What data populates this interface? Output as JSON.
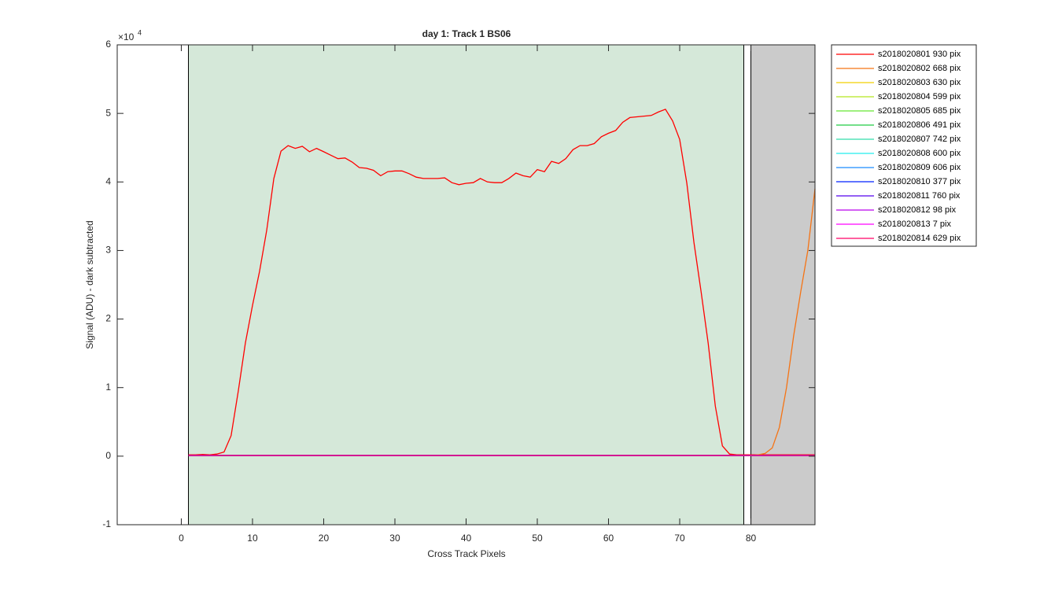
{
  "chart_data": {
    "type": "line",
    "title": "day 1: Track 1  BS06",
    "x_label": "Cross Track Pixels",
    "y_label": "Signal (ADU) - dark subtracted",
    "y_exponent_base": "×10",
    "y_exponent_power": "4",
    "xlim": [
      -9,
      89
    ],
    "ylim": [
      -10000,
      60000
    ],
    "xticks": [
      0,
      10,
      20,
      30,
      40,
      50,
      60,
      70,
      80
    ],
    "yticks": [
      {
        "value": -10000,
        "label": "-1"
      },
      {
        "value": 0,
        "label": "0"
      },
      {
        "value": 10000,
        "label": "1"
      },
      {
        "value": 20000,
        "label": "2"
      },
      {
        "value": 30000,
        "label": "3"
      },
      {
        "value": 40000,
        "label": "4"
      },
      {
        "value": 50000,
        "label": "5"
      },
      {
        "value": 60000,
        "label": "6"
      }
    ],
    "regions": [
      {
        "xmin": 1,
        "xmax": 79,
        "color": "#d5e8d9"
      },
      {
        "xmin": 80,
        "xmax": 89,
        "color": "#cbcbcb"
      }
    ],
    "series": [
      {
        "name": "s2018020801 930 pix",
        "color": "#ff0000",
        "x": [
          1,
          2,
          3,
          4,
          5,
          6,
          7,
          8,
          9,
          10,
          11,
          12,
          13,
          14,
          15,
          16,
          17,
          18,
          19,
          20,
          21,
          22,
          23,
          24,
          25,
          26,
          27,
          28,
          29,
          30,
          31,
          32,
          33,
          34,
          35,
          36,
          37,
          38,
          39,
          40,
          41,
          42,
          43,
          44,
          45,
          46,
          47,
          48,
          49,
          50,
          51,
          52,
          53,
          54,
          55,
          56,
          57,
          58,
          59,
          60,
          61,
          62,
          63,
          64,
          65,
          66,
          67,
          68,
          69,
          70,
          71,
          72,
          73,
          74,
          75,
          76,
          77,
          78,
          79,
          80,
          81,
          82,
          83,
          84,
          85,
          86,
          87,
          88,
          89
        ],
        "values": [
          200,
          200,
          250,
          200,
          300,
          600,
          3000,
          9500,
          16500,
          22000,
          27000,
          33000,
          40500,
          44500,
          45300,
          44900,
          45200,
          44400,
          44900,
          44400,
          43900,
          43400,
          43500,
          42900,
          42100,
          42000,
          41700,
          40900,
          41500,
          41600,
          41600,
          41200,
          40700,
          40500,
          40500,
          40500,
          40600,
          39900,
          39600,
          39800,
          39900,
          40500,
          40000,
          39900,
          39900,
          40500,
          41300,
          40900,
          40700,
          41800,
          41500,
          43000,
          42700,
          43400,
          44700,
          45300,
          45300,
          45600,
          46600,
          47100,
          47500,
          48700,
          49400,
          49500,
          49600,
          49700,
          50200,
          50600,
          48900,
          46200,
          39800,
          31200,
          24000,
          16500,
          7300,
          1500,
          300,
          200,
          200,
          200,
          200,
          200,
          200,
          200,
          200,
          200,
          200,
          200,
          200
        ]
      },
      {
        "name": "s2018020802 668 pix",
        "color": "#f57314",
        "x": [
          1,
          80,
          81,
          82,
          83,
          84,
          85,
          86,
          87,
          88,
          89
        ],
        "values": [
          100,
          100,
          200,
          400,
          1200,
          4200,
          10000,
          17500,
          24000,
          30000,
          39000
        ]
      },
      {
        "name": "s2018020803 630 pix",
        "color": "#f2d000",
        "x": [
          1,
          89
        ],
        "values": [
          100,
          100
        ]
      },
      {
        "name": "s2018020804 599 pix",
        "color": "#b5e61d",
        "x": [
          1,
          89
        ],
        "values": [
          100,
          100
        ]
      },
      {
        "name": "s2018020805 685 pix",
        "color": "#66e633",
        "x": [
          1,
          89
        ],
        "values": [
          100,
          100
        ]
      },
      {
        "name": "s2018020806 491 pix",
        "color": "#22cc44",
        "x": [
          1,
          89
        ],
        "values": [
          100,
          100
        ]
      },
      {
        "name": "s2018020807 742 pix",
        "color": "#33ddaa",
        "x": [
          1,
          89
        ],
        "values": [
          100,
          100
        ]
      },
      {
        "name": "s2018020808 600 pix",
        "color": "#22eeee",
        "x": [
          1,
          89
        ],
        "values": [
          100,
          100
        ]
      },
      {
        "name": "s2018020809 606 pix",
        "color": "#1a8cff",
        "x": [
          1,
          89
        ],
        "values": [
          100,
          100
        ]
      },
      {
        "name": "s2018020810 377 pix",
        "color": "#0022ff",
        "x": [
          1,
          89
        ],
        "values": [
          100,
          100
        ]
      },
      {
        "name": "s2018020811 760 pix",
        "color": "#5500ee",
        "x": [
          1,
          89
        ],
        "values": [
          100,
          100
        ]
      },
      {
        "name": "s2018020812 98 pix",
        "color": "#bb00ee",
        "x": [
          1,
          89
        ],
        "values": [
          100,
          100
        ]
      },
      {
        "name": "s2018020813 7 pix",
        "color": "#ff00ff",
        "x": [
          1,
          89
        ],
        "values": [
          100,
          100
        ]
      },
      {
        "name": "s2018020814 629 pix",
        "color": "#ff0066",
        "x": [
          1,
          89
        ],
        "values": [
          100,
          100
        ]
      }
    ]
  }
}
